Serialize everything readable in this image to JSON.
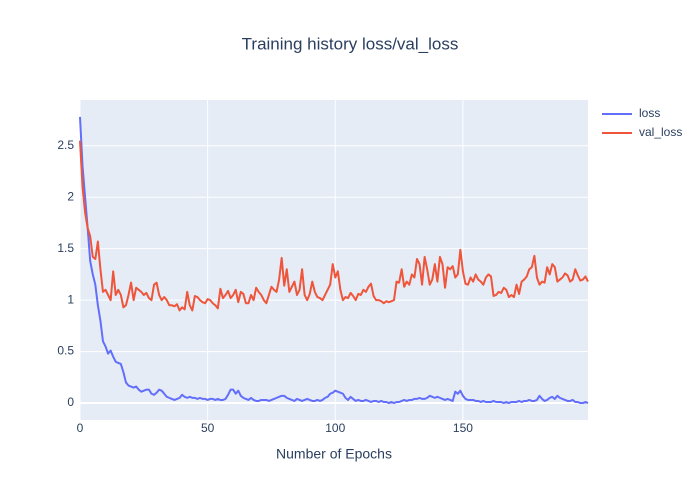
{
  "chart_data": {
    "type": "line",
    "title": "Training history loss/val_loss",
    "x_label": "Number of Epochs",
    "x": [
      0,
      1,
      2,
      3,
      4,
      5,
      6,
      7,
      8,
      9,
      10,
      11,
      12,
      13,
      14,
      15,
      16,
      17,
      18,
      19,
      20,
      21,
      22,
      23,
      24,
      25,
      26,
      27,
      28,
      29,
      30,
      31,
      32,
      33,
      34,
      35,
      36,
      37,
      38,
      39,
      40,
      41,
      42,
      43,
      44,
      45,
      46,
      47,
      48,
      49,
      50,
      51,
      52,
      53,
      54,
      55,
      56,
      57,
      58,
      59,
      60,
      61,
      62,
      63,
      64,
      65,
      66,
      67,
      68,
      69,
      70,
      71,
      72,
      73,
      74,
      75,
      76,
      77,
      78,
      79,
      80,
      81,
      82,
      83,
      84,
      85,
      86,
      87,
      88,
      89,
      90,
      91,
      92,
      93,
      94,
      95,
      96,
      97,
      98,
      99,
      100,
      101,
      102,
      103,
      104,
      105,
      106,
      107,
      108,
      109,
      110,
      111,
      112,
      113,
      114,
      115,
      116,
      117,
      118,
      119,
      120,
      121,
      122,
      123,
      124,
      125,
      126,
      127,
      128,
      129,
      130,
      131,
      132,
      133,
      134,
      135,
      136,
      137,
      138,
      139,
      140,
      141,
      142,
      143,
      144,
      145,
      146,
      147,
      148,
      149,
      150,
      151,
      152,
      153,
      154,
      155,
      156,
      157,
      158,
      159,
      160,
      161,
      162,
      163,
      164,
      165,
      166,
      167,
      168,
      169,
      170,
      171,
      172,
      173,
      174,
      175,
      176,
      177,
      178,
      179,
      180,
      181,
      182,
      183,
      184,
      185,
      186,
      187,
      188,
      189,
      190,
      191,
      192,
      193,
      194,
      195,
      196,
      197,
      198,
      199
    ],
    "series": [
      {
        "name": "loss",
        "color": "#636efa",
        "values": [
          2.78,
          2.3,
          2.0,
          1.7,
          1.38,
          1.25,
          1.15,
          0.95,
          0.8,
          0.6,
          0.55,
          0.48,
          0.51,
          0.45,
          0.4,
          0.39,
          0.38,
          0.3,
          0.2,
          0.17,
          0.16,
          0.15,
          0.16,
          0.13,
          0.11,
          0.12,
          0.13,
          0.13,
          0.09,
          0.08,
          0.1,
          0.13,
          0.12,
          0.09,
          0.06,
          0.05,
          0.04,
          0.03,
          0.04,
          0.05,
          0.08,
          0.06,
          0.05,
          0.06,
          0.05,
          0.05,
          0.04,
          0.05,
          0.04,
          0.04,
          0.03,
          0.04,
          0.04,
          0.03,
          0.04,
          0.03,
          0.03,
          0.04,
          0.08,
          0.13,
          0.13,
          0.09,
          0.12,
          0.07,
          0.05,
          0.04,
          0.03,
          0.05,
          0.03,
          0.02,
          0.02,
          0.03,
          0.03,
          0.03,
          0.02,
          0.03,
          0.04,
          0.05,
          0.06,
          0.07,
          0.07,
          0.05,
          0.04,
          0.03,
          0.02,
          0.04,
          0.03,
          0.02,
          0.03,
          0.04,
          0.03,
          0.02,
          0.02,
          0.03,
          0.02,
          0.03,
          0.05,
          0.06,
          0.09,
          0.1,
          0.12,
          0.11,
          0.1,
          0.09,
          0.05,
          0.03,
          0.06,
          0.04,
          0.02,
          0.03,
          0.02,
          0.02,
          0.03,
          0.02,
          0.01,
          0.02,
          0.02,
          0.01,
          0.02,
          0.01,
          0.01,
          0.0,
          0.01,
          0.0,
          0.01,
          0.01,
          0.02,
          0.03,
          0.02,
          0.03,
          0.03,
          0.04,
          0.04,
          0.05,
          0.04,
          0.04,
          0.05,
          0.07,
          0.06,
          0.05,
          0.06,
          0.05,
          0.04,
          0.03,
          0.04,
          0.03,
          0.02,
          0.11,
          0.09,
          0.12,
          0.07,
          0.04,
          0.03,
          0.03,
          0.03,
          0.02,
          0.02,
          0.01,
          0.02,
          0.01,
          0.01,
          0.01,
          0.02,
          0.01,
          0.01,
          0.01,
          0.0,
          0.01,
          0.0,
          0.01,
          0.01,
          0.01,
          0.02,
          0.01,
          0.02,
          0.02,
          0.03,
          0.02,
          0.02,
          0.03,
          0.07,
          0.04,
          0.02,
          0.03,
          0.05,
          0.06,
          0.04,
          0.07,
          0.05,
          0.04,
          0.03,
          0.02,
          0.02,
          0.03,
          0.01,
          0.01,
          0.0,
          0.0,
          0.01,
          0.0
        ]
      },
      {
        "name": "val_loss",
        "color": "#ef553b",
        "values": [
          2.55,
          2.1,
          1.85,
          1.7,
          1.62,
          1.42,
          1.4,
          1.57,
          1.3,
          1.08,
          1.1,
          1.05,
          1.0,
          1.28,
          1.05,
          1.1,
          1.05,
          0.93,
          0.95,
          1.05,
          1.17,
          1.0,
          1.12,
          1.1,
          1.08,
          1.05,
          1.07,
          1.02,
          1.0,
          1.15,
          1.17,
          1.05,
          1.0,
          1.03,
          1.0,
          0.95,
          0.95,
          0.94,
          0.96,
          0.9,
          0.93,
          0.91,
          1.08,
          0.95,
          0.9,
          1.04,
          1.03,
          1.0,
          0.98,
          0.97,
          1.01,
          1.0,
          0.97,
          0.95,
          0.92,
          1.11,
          1.02,
          1.05,
          1.09,
          1.02,
          1.05,
          1.1,
          0.98,
          1.08,
          1.06,
          0.97,
          0.97,
          1.05,
          1.0,
          1.12,
          1.08,
          1.05,
          1.0,
          0.97,
          1.05,
          1.13,
          1.1,
          1.08,
          1.2,
          1.41,
          1.14,
          1.3,
          1.08,
          1.13,
          1.18,
          1.05,
          1.1,
          1.3,
          1.05,
          1.0,
          1.06,
          1.18,
          1.08,
          1.03,
          1.02,
          1.0,
          1.05,
          1.1,
          1.15,
          1.35,
          1.22,
          1.28,
          1.1,
          1.0,
          1.03,
          1.02,
          1.07,
          1.04,
          1.0,
          1.06,
          1.05,
          1.1,
          1.08,
          1.13,
          1.16,
          1.04,
          1.0,
          1.0,
          0.99,
          0.97,
          0.99,
          0.98,
          0.99,
          1.0,
          1.18,
          1.17,
          1.3,
          1.13,
          1.18,
          1.15,
          1.25,
          1.22,
          1.4,
          1.35,
          1.15,
          1.42,
          1.3,
          1.15,
          1.2,
          1.35,
          1.18,
          1.42,
          1.35,
          1.12,
          1.32,
          1.3,
          1.33,
          1.22,
          1.25,
          1.49,
          1.28,
          1.16,
          1.15,
          1.22,
          1.18,
          1.25,
          1.2,
          1.18,
          1.15,
          1.22,
          1.25,
          1.23,
          1.04,
          1.05,
          1.08,
          1.07,
          1.12,
          1.1,
          1.03,
          1.05,
          1.03,
          1.15,
          1.06,
          1.18,
          1.2,
          1.23,
          1.3,
          1.32,
          1.43,
          1.22,
          1.15,
          1.18,
          1.17,
          1.32,
          1.25,
          1.35,
          1.32,
          1.18,
          1.2,
          1.22,
          1.26,
          1.24,
          1.18,
          1.2,
          1.3,
          1.24,
          1.19,
          1.2,
          1.23,
          1.18
        ]
      }
    ],
    "xlim": [
      0,
      199
    ],
    "ylim": [
      -0.165,
      2.945
    ],
    "xticks": [
      0,
      50,
      100,
      150
    ],
    "yticks": [
      0,
      0.5,
      1,
      1.5,
      2,
      2.5
    ],
    "grid": true,
    "legend": "top-right",
    "background": "#e5ecf6"
  }
}
